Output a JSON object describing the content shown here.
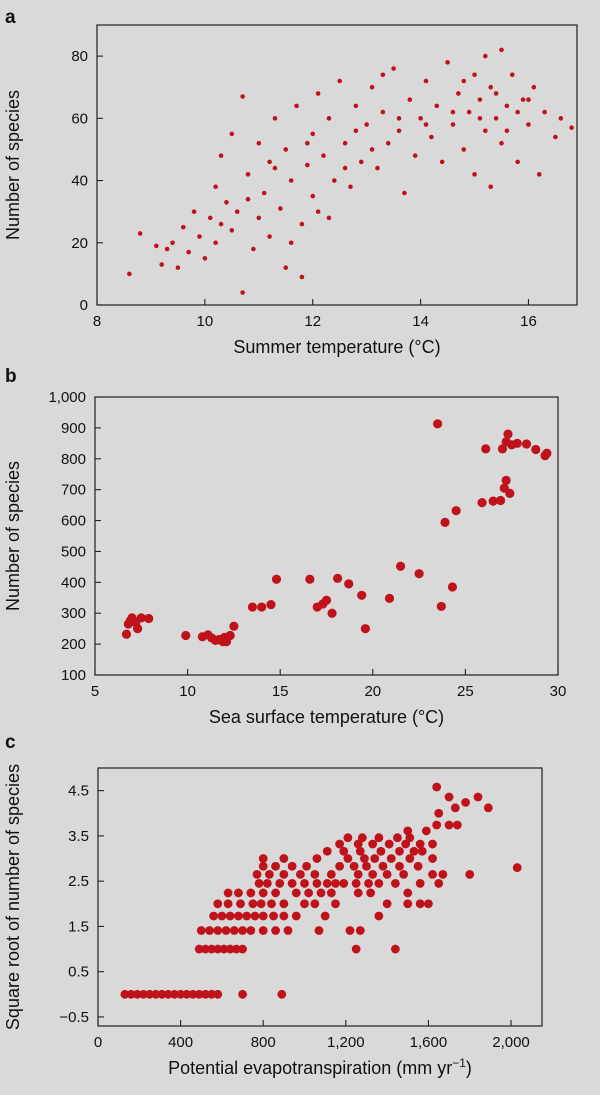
{
  "chart_data": [
    {
      "panel": "a",
      "type": "scatter",
      "title": "",
      "xlabel": "Summer temperature (°C)",
      "ylabel": "Number of species",
      "xlim": [
        8,
        16.9
      ],
      "ylim": [
        0,
        90
      ],
      "xticks": [
        8,
        10,
        12,
        14,
        16
      ],
      "yticks": [
        0,
        20,
        40,
        60,
        80
      ],
      "xtick_labels": [
        "8",
        "10",
        "12",
        "14",
        "16"
      ],
      "ytick_labels": [
        "0",
        "20",
        "40",
        "60",
        "80"
      ],
      "grid": false,
      "color": "#c0121a",
      "points": [
        [
          8.6,
          10
        ],
        [
          8.8,
          23
        ],
        [
          9.1,
          19
        ],
        [
          9.2,
          13
        ],
        [
          9.4,
          20
        ],
        [
          9.5,
          12
        ],
        [
          9.6,
          25
        ],
        [
          9.7,
          17
        ],
        [
          9.8,
          30
        ],
        [
          9.9,
          22
        ],
        [
          10.0,
          15
        ],
        [
          10.1,
          28
        ],
        [
          10.2,
          20
        ],
        [
          10.2,
          38
        ],
        [
          10.3,
          48
        ],
        [
          10.4,
          33
        ],
        [
          10.5,
          24
        ],
        [
          10.5,
          55
        ],
        [
          10.6,
          30
        ],
        [
          10.7,
          4
        ],
        [
          10.7,
          67
        ],
        [
          10.8,
          42
        ],
        [
          10.9,
          18
        ],
        [
          11.0,
          28
        ],
        [
          11.0,
          52
        ],
        [
          11.1,
          36
        ],
        [
          11.2,
          22
        ],
        [
          11.2,
          46
        ],
        [
          11.3,
          60
        ],
        [
          11.4,
          31
        ],
        [
          11.5,
          50
        ],
        [
          11.5,
          12
        ],
        [
          11.6,
          40
        ],
        [
          11.7,
          64
        ],
        [
          11.8,
          26
        ],
        [
          11.8,
          9
        ],
        [
          11.9,
          45
        ],
        [
          12.0,
          55
        ],
        [
          12.0,
          35
        ],
        [
          12.1,
          68
        ],
        [
          12.2,
          48
        ],
        [
          12.3,
          28
        ],
        [
          12.3,
          60
        ],
        [
          12.4,
          40
        ],
        [
          12.5,
          72
        ],
        [
          12.6,
          52
        ],
        [
          12.7,
          38
        ],
        [
          12.8,
          64
        ],
        [
          12.9,
          46
        ],
        [
          13.0,
          58
        ],
        [
          13.1,
          70
        ],
        [
          13.2,
          44
        ],
        [
          13.3,
          62
        ],
        [
          13.4,
          52
        ],
        [
          13.5,
          76
        ],
        [
          13.6,
          56
        ],
        [
          13.7,
          36
        ],
        [
          13.8,
          66
        ],
        [
          13.9,
          48
        ],
        [
          14.0,
          60
        ],
        [
          14.1,
          72
        ],
        [
          14.2,
          54
        ],
        [
          14.3,
          64
        ],
        [
          14.4,
          46
        ],
        [
          14.5,
          78
        ],
        [
          14.6,
          58
        ],
        [
          14.7,
          68
        ],
        [
          14.8,
          50
        ],
        [
          14.9,
          62
        ],
        [
          15.0,
          74
        ],
        [
          15.0,
          42
        ],
        [
          15.1,
          66
        ],
        [
          15.2,
          56
        ],
        [
          15.2,
          80
        ],
        [
          15.3,
          38
        ],
        [
          15.3,
          70
        ],
        [
          15.4,
          60
        ],
        [
          15.5,
          52
        ],
        [
          15.5,
          82
        ],
        [
          15.6,
          64
        ],
        [
          15.7,
          74
        ],
        [
          15.8,
          46
        ],
        [
          15.9,
          66
        ],
        [
          16.0,
          58
        ],
        [
          16.1,
          70
        ],
        [
          16.2,
          42
        ],
        [
          16.3,
          62
        ],
        [
          16.5,
          54
        ],
        [
          16.6,
          60
        ],
        [
          16.8,
          57
        ],
        [
          9.3,
          18
        ],
        [
          10.3,
          26
        ],
        [
          10.8,
          34
        ],
        [
          11.3,
          44
        ],
        [
          11.6,
          20
        ],
        [
          12.1,
          30
        ],
        [
          12.6,
          44
        ],
        [
          13.1,
          50
        ],
        [
          13.6,
          60
        ],
        [
          14.1,
          58
        ],
        [
          14.6,
          62
        ],
        [
          15.1,
          60
        ],
        [
          15.4,
          68
        ],
        [
          15.6,
          56
        ],
        [
          15.8,
          62
        ],
        [
          16.0,
          66
        ],
        [
          14.8,
          72
        ],
        [
          13.3,
          74
        ],
        [
          12.8,
          56
        ],
        [
          11.9,
          52
        ]
      ]
    },
    {
      "panel": "b",
      "type": "scatter",
      "title": "",
      "xlabel": "Sea surface temperature (°C)",
      "ylabel": "Number of species",
      "xlim": [
        5,
        30
      ],
      "ylim": [
        100,
        1000
      ],
      "xticks": [
        5,
        10,
        15,
        20,
        25,
        30
      ],
      "yticks": [
        100,
        200,
        300,
        400,
        500,
        600,
        700,
        800,
        900,
        1000
      ],
      "xtick_labels": [
        "5",
        "10",
        "15",
        "20",
        "25",
        "30"
      ],
      "ytick_labels": [
        "100",
        "200",
        "300",
        "400",
        "500",
        "600",
        "700",
        "800",
        "900",
        "1,000"
      ],
      "grid": false,
      "color": "#c0121a",
      "points": [
        [
          6.7,
          232
        ],
        [
          6.8,
          265
        ],
        [
          6.9,
          275
        ],
        [
          7.0,
          285
        ],
        [
          7.2,
          270
        ],
        [
          7.3,
          250
        ],
        [
          7.5,
          285
        ],
        [
          7.9,
          283
        ],
        [
          9.9,
          228
        ],
        [
          10.8,
          224
        ],
        [
          11.1,
          230
        ],
        [
          11.3,
          220
        ],
        [
          11.5,
          212
        ],
        [
          11.7,
          215
        ],
        [
          11.9,
          208
        ],
        [
          12.0,
          222
        ],
        [
          12.1,
          208
        ],
        [
          12.3,
          228
        ],
        [
          12.5,
          258
        ],
        [
          13.5,
          320
        ],
        [
          14.0,
          320
        ],
        [
          14.5,
          328
        ],
        [
          14.8,
          410
        ],
        [
          16.6,
          410
        ],
        [
          17.0,
          320
        ],
        [
          17.3,
          330
        ],
        [
          17.5,
          342
        ],
        [
          17.8,
          300
        ],
        [
          18.1,
          413
        ],
        [
          18.7,
          395
        ],
        [
          19.4,
          358
        ],
        [
          19.6,
          250
        ],
        [
          20.9,
          348
        ],
        [
          21.5,
          452
        ],
        [
          22.5,
          428
        ],
        [
          23.5,
          913
        ],
        [
          23.7,
          322
        ],
        [
          23.9,
          594
        ],
        [
          24.3,
          385
        ],
        [
          24.5,
          632
        ],
        [
          25.9,
          658
        ],
        [
          26.1,
          832
        ],
        [
          26.5,
          663
        ],
        [
          26.9,
          665
        ],
        [
          27.0,
          832
        ],
        [
          27.1,
          705
        ],
        [
          27.2,
          730
        ],
        [
          27.2,
          855
        ],
        [
          27.3,
          880
        ],
        [
          27.4,
          688
        ],
        [
          27.5,
          845
        ],
        [
          27.8,
          850
        ],
        [
          28.3,
          848
        ],
        [
          28.8,
          830
        ],
        [
          29.3,
          810
        ],
        [
          29.4,
          818
        ]
      ]
    },
    {
      "panel": "c",
      "type": "scatter",
      "title": "",
      "xlabel": "Potential evapotranspiration (mm yr−1)",
      "ylabel": "Square root of number of species",
      "xlim": [
        0,
        2150
      ],
      "ylim": [
        -0.7,
        5.0
      ],
      "xticks": [
        0,
        400,
        800,
        1200,
        1600,
        2000
      ],
      "yticks": [
        -0.5,
        0.5,
        1.5,
        2.5,
        3.5,
        4.5
      ],
      "xtick_labels": [
        "0",
        "400",
        "800",
        "1,200",
        "1,600",
        "2,000"
      ],
      "ytick_labels": [
        "−0.5",
        "0.5",
        "1.5",
        "2.5",
        "3.5",
        "4.5"
      ],
      "grid": false,
      "color": "#c0121a",
      "points": [
        [
          130,
          0
        ],
        [
          160,
          0
        ],
        [
          190,
          0
        ],
        [
          220,
          0
        ],
        [
          250,
          0
        ],
        [
          280,
          0
        ],
        [
          310,
          0
        ],
        [
          340,
          0
        ],
        [
          370,
          0
        ],
        [
          400,
          0
        ],
        [
          430,
          0
        ],
        [
          460,
          0
        ],
        [
          490,
          0
        ],
        [
          520,
          0
        ],
        [
          550,
          0
        ],
        [
          580,
          0
        ],
        [
          700,
          0
        ],
        [
          890,
          0
        ],
        [
          490,
          1.0
        ],
        [
          520,
          1.0
        ],
        [
          550,
          1.0
        ],
        [
          580,
          1.0
        ],
        [
          610,
          1.0
        ],
        [
          640,
          1.0
        ],
        [
          670,
          1.0
        ],
        [
          700,
          1.0
        ],
        [
          1250,
          1.0
        ],
        [
          1440,
          1.0
        ],
        [
          500,
          1.41
        ],
        [
          540,
          1.41
        ],
        [
          580,
          1.41
        ],
        [
          620,
          1.41
        ],
        [
          660,
          1.41
        ],
        [
          700,
          1.41
        ],
        [
          740,
          1.41
        ],
        [
          800,
          1.41
        ],
        [
          860,
          1.41
        ],
        [
          920,
          1.41
        ],
        [
          1070,
          1.41
        ],
        [
          1220,
          1.41
        ],
        [
          1270,
          1.41
        ],
        [
          560,
          1.73
        ],
        [
          600,
          1.73
        ],
        [
          640,
          1.73
        ],
        [
          680,
          1.73
        ],
        [
          720,
          1.73
        ],
        [
          760,
          1.73
        ],
        [
          800,
          1.73
        ],
        [
          850,
          1.73
        ],
        [
          900,
          1.73
        ],
        [
          960,
          1.73
        ],
        [
          1100,
          1.73
        ],
        [
          1360,
          1.73
        ],
        [
          580,
          2.0
        ],
        [
          630,
          2.0
        ],
        [
          690,
          2.0
        ],
        [
          750,
          2.0
        ],
        [
          790,
          2.0
        ],
        [
          840,
          2.0
        ],
        [
          900,
          2.0
        ],
        [
          1000,
          2.0
        ],
        [
          1050,
          2.0
        ],
        [
          1150,
          2.0
        ],
        [
          1400,
          2.0
        ],
        [
          1500,
          2.0
        ],
        [
          1560,
          2.0
        ],
        [
          1600,
          2.0
        ],
        [
          630,
          2.24
        ],
        [
          680,
          2.24
        ],
        [
          740,
          2.24
        ],
        [
          800,
          2.24
        ],
        [
          860,
          2.24
        ],
        [
          960,
          2.24
        ],
        [
          1020,
          2.24
        ],
        [
          1080,
          2.24
        ],
        [
          1130,
          2.24
        ],
        [
          1260,
          2.24
        ],
        [
          1320,
          2.24
        ],
        [
          1500,
          2.24
        ],
        [
          780,
          2.45
        ],
        [
          820,
          2.45
        ],
        [
          880,
          2.45
        ],
        [
          940,
          2.45
        ],
        [
          1000,
          2.45
        ],
        [
          1060,
          2.45
        ],
        [
          1110,
          2.45
        ],
        [
          1150,
          2.45
        ],
        [
          1190,
          2.45
        ],
        [
          1250,
          2.45
        ],
        [
          1310,
          2.45
        ],
        [
          1360,
          2.45
        ],
        [
          1440,
          2.45
        ],
        [
          1560,
          2.45
        ],
        [
          1650,
          2.45
        ],
        [
          770,
          2.65
        ],
        [
          830,
          2.65
        ],
        [
          900,
          2.65
        ],
        [
          980,
          2.65
        ],
        [
          1050,
          2.65
        ],
        [
          1130,
          2.65
        ],
        [
          1260,
          2.65
        ],
        [
          1330,
          2.65
        ],
        [
          1400,
          2.65
        ],
        [
          1480,
          2.65
        ],
        [
          1620,
          2.65
        ],
        [
          1670,
          2.65
        ],
        [
          1800,
          2.65
        ],
        [
          2030,
          2.8
        ],
        [
          800,
          2.83
        ],
        [
          860,
          2.83
        ],
        [
          940,
          2.83
        ],
        [
          1010,
          2.83
        ],
        [
          1170,
          2.83
        ],
        [
          1240,
          2.83
        ],
        [
          1300,
          2.83
        ],
        [
          1380,
          2.83
        ],
        [
          1460,
          2.83
        ],
        [
          1550,
          2.83
        ],
        [
          800,
          3.0
        ],
        [
          900,
          3.0
        ],
        [
          1060,
          3.0
        ],
        [
          1210,
          3.0
        ],
        [
          1290,
          3.0
        ],
        [
          1340,
          3.0
        ],
        [
          1420,
          3.0
        ],
        [
          1510,
          3.0
        ],
        [
          1620,
          3.0
        ],
        [
          1110,
          3.16
        ],
        [
          1190,
          3.16
        ],
        [
          1270,
          3.16
        ],
        [
          1370,
          3.16
        ],
        [
          1460,
          3.16
        ],
        [
          1530,
          3.16
        ],
        [
          1570,
          3.16
        ],
        [
          1170,
          3.32
        ],
        [
          1260,
          3.32
        ],
        [
          1330,
          3.32
        ],
        [
          1410,
          3.32
        ],
        [
          1490,
          3.32
        ],
        [
          1560,
          3.32
        ],
        [
          1620,
          3.32
        ],
        [
          1210,
          3.46
        ],
        [
          1280,
          3.46
        ],
        [
          1360,
          3.46
        ],
        [
          1450,
          3.46
        ],
        [
          1510,
          3.46
        ],
        [
          1500,
          3.61
        ],
        [
          1590,
          3.61
        ],
        [
          1640,
          3.74
        ],
        [
          1700,
          3.74
        ],
        [
          1740,
          3.74
        ],
        [
          1650,
          4.0
        ],
        [
          1730,
          4.12
        ],
        [
          1700,
          4.36
        ],
        [
          1780,
          4.24
        ],
        [
          1840,
          4.36
        ],
        [
          1890,
          4.12
        ],
        [
          1640,
          4.58
        ]
      ]
    }
  ]
}
